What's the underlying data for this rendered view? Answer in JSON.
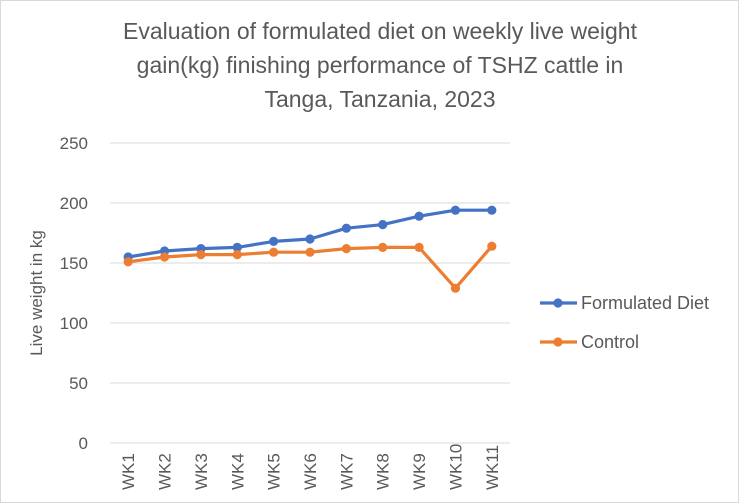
{
  "chart_data": {
    "type": "line",
    "title_lines": [
      "Evaluation of formulated diet on weekly live weight",
      "gain(kg) finishing performance of TSHZ cattle  in",
      "Tanga, Tanzania, 2023"
    ],
    "title": "Evaluation of formulated diet on weekly live weight gain(kg) finishing performance of TSHZ cattle  in Tanga, Tanzania, 2023",
    "xlabel": "",
    "ylabel": "Live weight in kg",
    "categories": [
      "WK1",
      "WK2",
      "WK3",
      "WK4",
      "WK5",
      "WK6",
      "WK7",
      "WK8",
      "WK9",
      "WK10",
      "WK11"
    ],
    "yticks": [
      0,
      50,
      100,
      150,
      200,
      250
    ],
    "ylim": [
      0,
      250
    ],
    "grid": true,
    "legend_position": "right",
    "series": [
      {
        "name": "Formulated Diet",
        "color": "#4472C4",
        "values": [
          155,
          160,
          162,
          163,
          168,
          170,
          179,
          182,
          189,
          194,
          194
        ]
      },
      {
        "name": "Control",
        "color": "#ED7D31",
        "values": [
          151,
          155,
          157,
          157,
          159,
          159,
          162,
          163,
          163,
          129,
          164
        ]
      }
    ]
  }
}
